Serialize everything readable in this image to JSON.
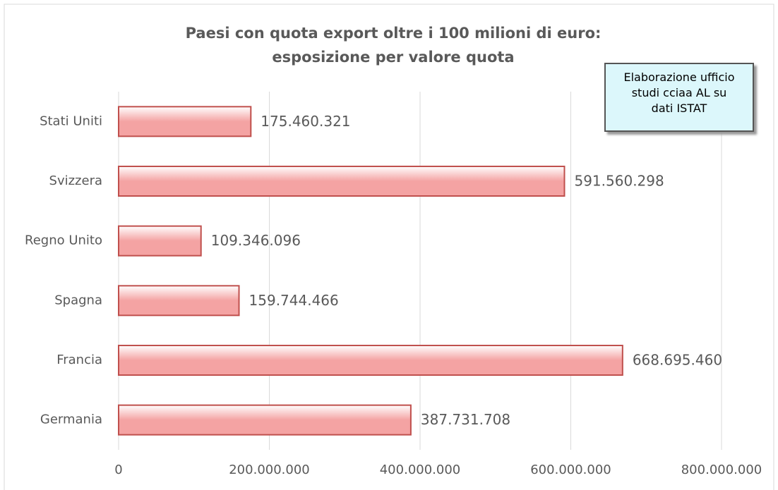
{
  "chart_data": {
    "type": "bar",
    "orientation": "horizontal",
    "title": [
      "Paesi con quota export oltre i 100 milioni di euro:",
      "esposizione per valore quota"
    ],
    "annotation": "Elaborazione ufficio studi cciaa AL su dati ISTAT",
    "categories": [
      "Stati Uniti",
      "Svizzera",
      "Regno Unito",
      "Spagna",
      "Francia",
      "Germania"
    ],
    "values": [
      175460321,
      591560298,
      109346096,
      159744466,
      668695460,
      387731708
    ],
    "value_labels": [
      "175.460.321",
      "591.560.298",
      "109.346.096",
      "159.744.466",
      "668.695.460",
      "387.731.708"
    ],
    "color": "#f4a3a3",
    "edge_color": "#c0504d",
    "xlim": [
      0,
      800000000
    ],
    "xticks": [
      0,
      {
        "value": 200000000,
        "label": "200.000.000"
      },
      {
        "value": 400000000,
        "label": "400.000.000"
      },
      {
        "value": 600000000,
        "label": "600.000.000"
      },
      {
        "value": 800000000,
        "label": "800.000.000"
      }
    ],
    "grid": true
  }
}
